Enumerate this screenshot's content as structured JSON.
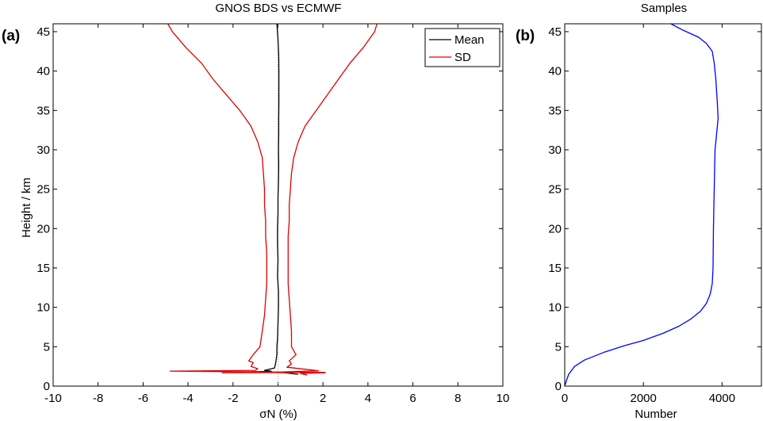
{
  "chart_data": [
    {
      "type": "line",
      "panel_label": "(a)",
      "title": "GNOS BDS vs ECMWF",
      "xlabel": "σN (%)",
      "ylabel": "Height / km",
      "xlim": [
        -10,
        10
      ],
      "ylim": [
        0,
        46
      ],
      "xticks": [
        -10,
        -8,
        -6,
        -4,
        -2,
        0,
        2,
        4,
        6,
        8,
        10
      ],
      "yticks": [
        0,
        5,
        10,
        15,
        20,
        25,
        30,
        35,
        40,
        45
      ],
      "legend": {
        "placement": "top-right",
        "entries": [
          "Mean",
          "SD"
        ]
      },
      "zero_line": {
        "x": 0,
        "style": "dotted",
        "color": "#999999"
      },
      "series": [
        {
          "name": "Mean",
          "color": "#000000",
          "points": [
            [
              0.9,
              1.5
            ],
            [
              0.3,
              1.7
            ],
            [
              -1.4,
              1.8
            ],
            [
              -0.7,
              1.85
            ],
            [
              -0.3,
              1.9
            ],
            [
              -0.6,
              2.0
            ],
            [
              -0.15,
              2.3
            ],
            [
              -0.1,
              3
            ],
            [
              -0.05,
              4
            ],
            [
              -0.05,
              5
            ],
            [
              -0.02,
              6
            ],
            [
              0.0,
              8
            ],
            [
              0.02,
              10
            ],
            [
              0.02,
              12
            ],
            [
              -0.02,
              14
            ],
            [
              0.0,
              16
            ],
            [
              -0.02,
              18
            ],
            [
              -0.02,
              20
            ],
            [
              0.0,
              22
            ],
            [
              0.0,
              24
            ],
            [
              0.02,
              26
            ],
            [
              0.03,
              28
            ],
            [
              0.02,
              30
            ],
            [
              0.03,
              32
            ],
            [
              0.03,
              34
            ],
            [
              0.04,
              36
            ],
            [
              0.04,
              38
            ],
            [
              0.04,
              40
            ],
            [
              0.03,
              42
            ],
            [
              0.0,
              44
            ],
            [
              -0.05,
              46
            ]
          ]
        },
        {
          "name": "SD",
          "color": "#e00000",
          "points": [
            [
              -4.9,
              46
            ],
            [
              -4.7,
              45
            ],
            [
              -4.1,
              43
            ],
            [
              -3.4,
              41
            ],
            [
              -2.9,
              39
            ],
            [
              -2.3,
              37
            ],
            [
              -1.7,
              35
            ],
            [
              -1.2,
              33
            ],
            [
              -0.9,
              31
            ],
            [
              -0.7,
              29
            ],
            [
              -0.65,
              27
            ],
            [
              -0.6,
              25
            ],
            [
              -0.6,
              23
            ],
            [
              -0.55,
              21
            ],
            [
              -0.55,
              19
            ],
            [
              -0.5,
              17
            ],
            [
              -0.5,
              15
            ],
            [
              -0.5,
              13
            ],
            [
              -0.55,
              11
            ],
            [
              -0.6,
              9
            ],
            [
              -0.7,
              7
            ],
            [
              -0.8,
              5
            ],
            [
              -1.1,
              4
            ],
            [
              -1.3,
              3.2
            ],
            [
              -1.1,
              3
            ],
            [
              -1.2,
              2.5
            ],
            [
              -0.9,
              2.2
            ],
            [
              -1.0,
              2.0
            ],
            [
              -4.8,
              1.9
            ],
            [
              -0.5,
              1.8
            ],
            [
              2.1,
              1.75
            ],
            [
              -2.5,
              1.7
            ]
          ]
        },
        {
          "name": "SD",
          "color": "#e00000",
          "points": [
            [
              4.4,
              46
            ],
            [
              4.3,
              45
            ],
            [
              3.8,
              43
            ],
            [
              3.2,
              41
            ],
            [
              2.7,
              39
            ],
            [
              2.2,
              37
            ],
            [
              1.7,
              35
            ],
            [
              1.2,
              33
            ],
            [
              0.9,
              31
            ],
            [
              0.7,
              29
            ],
            [
              0.6,
              27
            ],
            [
              0.55,
              25
            ],
            [
              0.5,
              23
            ],
            [
              0.5,
              21
            ],
            [
              0.45,
              19
            ],
            [
              0.45,
              17
            ],
            [
              0.45,
              15
            ],
            [
              0.45,
              13
            ],
            [
              0.5,
              11
            ],
            [
              0.55,
              9
            ],
            [
              0.6,
              7
            ],
            [
              0.6,
              5
            ],
            [
              0.8,
              4
            ],
            [
              0.5,
              3.2
            ],
            [
              0.6,
              2.8
            ],
            [
              0.4,
              2.4
            ],
            [
              1.8,
              1.95
            ],
            [
              0.2,
              1.8
            ],
            [
              2.1,
              1.7
            ],
            [
              1.0,
              1.6
            ],
            [
              1.3,
              1.4
            ]
          ]
        }
      ]
    },
    {
      "type": "line",
      "panel_label": "(b)",
      "title": "Samples",
      "xlabel": "Number",
      "ylabel": "",
      "xlim": [
        0,
        5000
      ],
      "ylim": [
        0,
        46
      ],
      "xticks": [
        0,
        2000,
        4000
      ],
      "yticks": [
        0,
        5,
        10,
        15,
        20,
        25,
        30,
        35,
        40,
        45
      ],
      "series": [
        {
          "color": "#0000ff",
          "points": [
            [
              0,
              0
            ],
            [
              30,
              0.5
            ],
            [
              100,
              1.5
            ],
            [
              250,
              2.5
            ],
            [
              500,
              3.3
            ],
            [
              1000,
              4.3
            ],
            [
              1500,
              5.1
            ],
            [
              2000,
              5.8
            ],
            [
              2500,
              6.7
            ],
            [
              2900,
              7.6
            ],
            [
              3200,
              8.5
            ],
            [
              3450,
              9.5
            ],
            [
              3600,
              10.5
            ],
            [
              3700,
              11.7
            ],
            [
              3750,
              13
            ],
            [
              3770,
              15
            ],
            [
              3780,
              20
            ],
            [
              3800,
              25
            ],
            [
              3820,
              30
            ],
            [
              3860,
              32
            ],
            [
              3900,
              34
            ],
            [
              3880,
              36
            ],
            [
              3840,
              39
            ],
            [
              3800,
              41
            ],
            [
              3750,
              42.5
            ],
            [
              3600,
              43.5
            ],
            [
              3400,
              44.3
            ],
            [
              3000,
              45.2
            ],
            [
              2700,
              46
            ]
          ]
        }
      ]
    }
  ]
}
